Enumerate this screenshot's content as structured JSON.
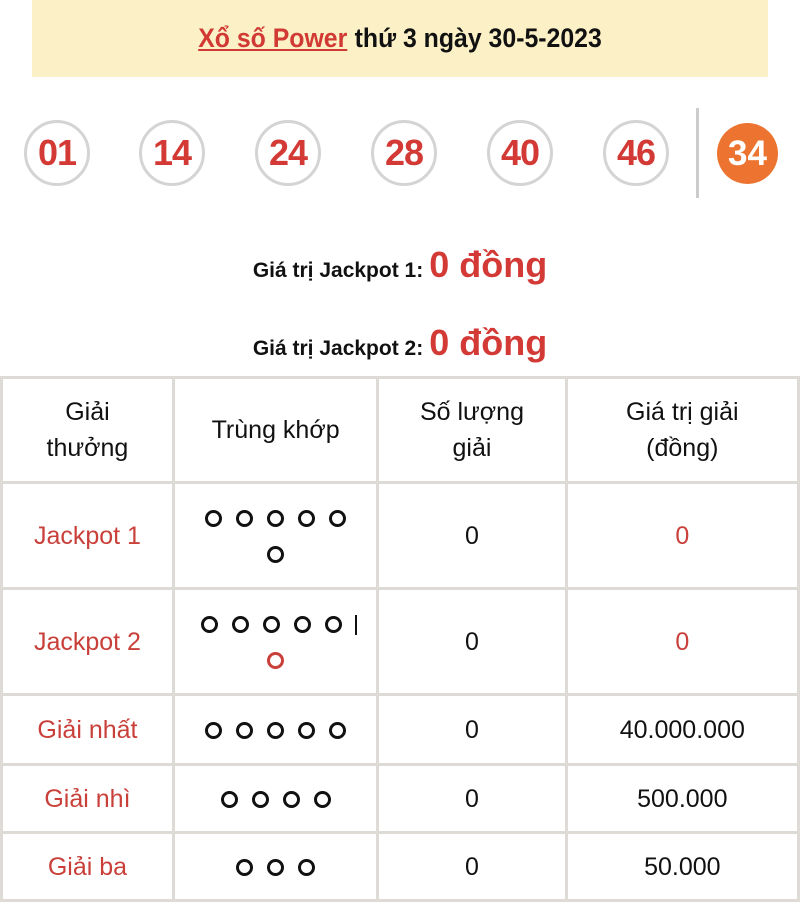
{
  "header": {
    "link": "Xổ số Power",
    "rest": "thứ 3 ngày 30-5-2023"
  },
  "balls": [
    "01",
    "14",
    "24",
    "28",
    "40",
    "46"
  ],
  "power_ball": "34",
  "jackpots": [
    {
      "label": "Giá trị Jackpot 1:",
      "value": "0 đồng"
    },
    {
      "label": "Giá trị Jackpot 2:",
      "value": "0 đồng"
    }
  ],
  "table": {
    "headers": [
      "Giải thưởng",
      "Trùng khớp",
      "Số lượng giải",
      "Giá trị giải (đồng)"
    ],
    "rows": [
      {
        "prize": "Jackpot 1",
        "match": [
          "o",
          "o",
          "o",
          "o",
          "o",
          "br",
          "o"
        ],
        "count": "0",
        "value": "0",
        "value_red": true
      },
      {
        "prize": "Jackpot 2",
        "match": [
          "o",
          "o",
          "o",
          "o",
          "o",
          "|",
          "br",
          "r"
        ],
        "count": "0",
        "value": "0",
        "value_red": true
      },
      {
        "prize": "Giải nhất",
        "match": [
          "o",
          "o",
          "o",
          "o",
          "o"
        ],
        "count": "0",
        "value": "40.000.000"
      },
      {
        "prize": "Giải nhì",
        "match": [
          "o",
          "o",
          "o",
          "o"
        ],
        "count": "0",
        "value": "500.000"
      },
      {
        "prize": "Giải ba",
        "match": [
          "o",
          "o",
          "o"
        ],
        "count": "0",
        "value": "50.000"
      }
    ]
  },
  "colors": {
    "accent": "#d33a36",
    "power": "#ec7430",
    "header_bg": "#fcf1c6"
  }
}
